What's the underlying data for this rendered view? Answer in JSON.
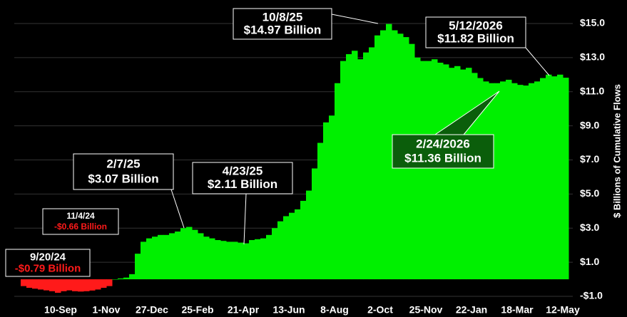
{
  "chart_data": {
    "type": "bar",
    "y_label": "$ Billions of Cumulative Flows",
    "color": "#00f000",
    "negative_color": "#ff1a1a",
    "grid": true,
    "categories": [
      null,
      null,
      null,
      null,
      null,
      null,
      null,
      "10-Sep",
      null,
      null,
      null,
      null,
      null,
      null,
      null,
      "1-Nov",
      null,
      null,
      null,
      null,
      null,
      null,
      null,
      "27-Dec",
      null,
      null,
      null,
      null,
      null,
      null,
      null,
      "25-Feb",
      null,
      null,
      null,
      null,
      null,
      null,
      null,
      "21-Apr",
      null,
      null,
      null,
      null,
      null,
      null,
      null,
      "13-Jun",
      null,
      null,
      null,
      null,
      null,
      null,
      null,
      "8-Aug",
      null,
      null,
      null,
      null,
      null,
      null,
      null,
      "2-Oct",
      null,
      null,
      null,
      null,
      null,
      null,
      null,
      "25-Nov",
      null,
      null,
      null,
      null,
      null,
      null,
      null,
      "22-Jan",
      null,
      null,
      null,
      null,
      null,
      null,
      null,
      "18-Mar",
      null,
      null,
      null,
      null,
      null,
      null,
      null,
      "12-May"
    ],
    "values": [
      -0.4,
      -0.5,
      -0.55,
      -0.6,
      -0.65,
      -0.7,
      -0.79,
      -0.7,
      -0.65,
      -0.7,
      -0.72,
      -0.7,
      -0.66,
      -0.6,
      -0.5,
      -0.4,
      0.0,
      0.05,
      0.1,
      0.3,
      1.5,
      2.2,
      2.4,
      2.5,
      2.6,
      2.6,
      2.7,
      2.8,
      3.0,
      3.07,
      2.9,
      2.7,
      2.5,
      2.4,
      2.3,
      2.25,
      2.2,
      2.2,
      2.15,
      2.11,
      2.3,
      2.35,
      2.4,
      2.6,
      3.0,
      3.4,
      3.7,
      3.9,
      4.1,
      4.6,
      5.2,
      6.5,
      8.0,
      9.2,
      9.6,
      11.5,
      12.8,
      13.2,
      13.4,
      12.9,
      13.3,
      13.6,
      14.3,
      14.6,
      14.97,
      14.6,
      14.4,
      14.2,
      13.8,
      13.0,
      12.8,
      12.8,
      12.9,
      12.7,
      12.6,
      12.4,
      12.5,
      12.3,
      12.4,
      12.1,
      11.8,
      11.6,
      11.5,
      11.5,
      11.6,
      11.7,
      11.5,
      11.4,
      11.36,
      11.5,
      11.6,
      11.8,
      12.0,
      11.9,
      12.0,
      11.82
    ],
    "ylim": [
      -1,
      16
    ],
    "yticks": [
      {
        "value": -1,
        "label": "-$1.0"
      },
      {
        "value": 1,
        "label": "$1.0"
      },
      {
        "value": 3,
        "label": "$3.0"
      },
      {
        "value": 5,
        "label": "$5.0"
      },
      {
        "value": 7,
        "label": "$7.0"
      },
      {
        "value": 9,
        "label": "$9.0"
      },
      {
        "value": 11,
        "label": "$11.0"
      },
      {
        "value": 13,
        "label": "$13.0"
      },
      {
        "value": 15,
        "label": "$15.0"
      }
    ],
    "annotations": [
      [
        "9/20/24",
        "-$0.79 Billion"
      ],
      [
        "11/4/24",
        "-$0.66 Billion"
      ],
      [
        "2/7/25",
        "$3.07 Billion"
      ],
      [
        "4/23/25",
        "$2.11 Billion"
      ],
      [
        "10/8/25",
        "$14.97 Billion"
      ],
      [
        "5/12/2026",
        "$11.82 Billion"
      ],
      [
        "2/24/2026",
        "$11.36 Billion"
      ]
    ]
  }
}
